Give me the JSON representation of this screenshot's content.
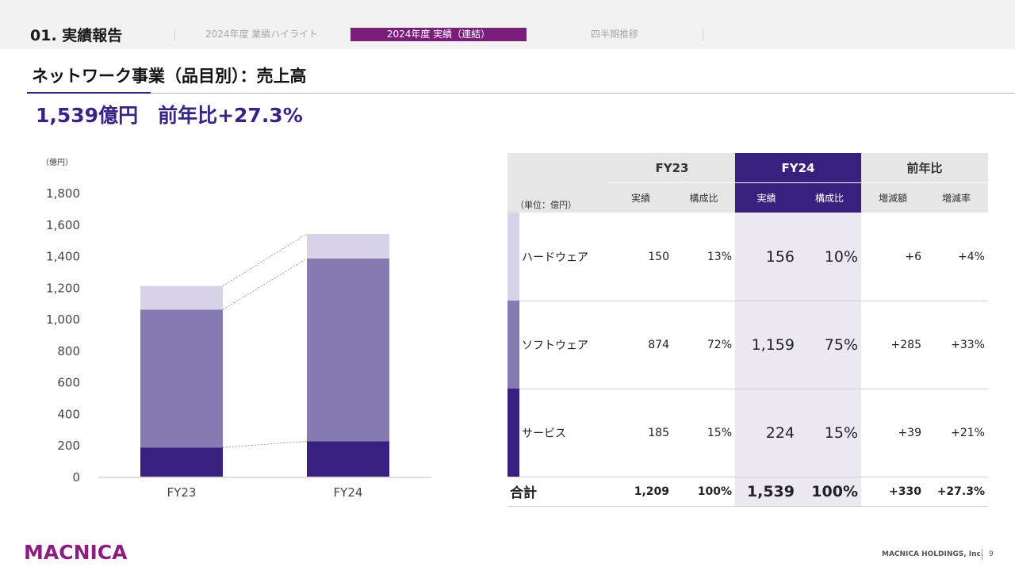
{
  "header": {
    "section_title": "01. 実績報告",
    "tabs": [
      {
        "label": "2024年度 業績ハイライト",
        "active": false
      },
      {
        "label": "2024年度 実績（連結）",
        "active": true
      },
      {
        "label": "四半期推移",
        "active": false
      }
    ]
  },
  "page": {
    "heading": "ネットワーク事業（品目別）：売上高",
    "headline": "1,539億円　前年比+27.3%"
  },
  "chart_data": {
    "type": "bar",
    "stacked": true,
    "categories": [
      "FY23",
      "FY24"
    ],
    "series": [
      {
        "name": "サービス",
        "values": [
          185,
          224
        ],
        "color": "#37207f"
      },
      {
        "name": "ソフトウェア",
        "values": [
          874,
          1159
        ],
        "color": "#8779b2"
      },
      {
        "name": "ハードウェア",
        "values": [
          150,
          156
        ],
        "color": "#d7d2e6"
      }
    ],
    "ylabel": "（億円）",
    "ylim": [
      0,
      1800
    ],
    "yticks": [
      0,
      200,
      400,
      600,
      800,
      1000,
      1200,
      1400,
      1600,
      1800
    ],
    "ytick_labels": [
      "0",
      "200",
      "400",
      "600",
      "800",
      "1,000",
      "1,200",
      "1,400",
      "1,600",
      "1,800"
    ],
    "grid": false,
    "legend": "none"
  },
  "table": {
    "unit_label": "（単位：億円）",
    "groups": [
      "FY23",
      "FY24",
      "前年比"
    ],
    "subheaders": [
      "実績",
      "構成比",
      "実績",
      "構成比",
      "増減額",
      "増減率"
    ],
    "rows": [
      {
        "label": "ハードウェア",
        "color": "#d7d2e6",
        "cells": [
          "150",
          "13%",
          "156",
          "10%",
          "+6",
          "+4%"
        ]
      },
      {
        "label": "ソフトウェア",
        "color": "#8779b2",
        "cells": [
          "874",
          "72%",
          "1,159",
          "75%",
          "+285",
          "+33%"
        ]
      },
      {
        "label": "サービス",
        "color": "#37207f",
        "cells": [
          "185",
          "15%",
          "224",
          "15%",
          "+39",
          "+21%"
        ]
      }
    ],
    "total": {
      "label": "合計",
      "cells": [
        "1,209",
        "100%",
        "1,539",
        "100%",
        "+330",
        "+27.3%"
      ]
    }
  },
  "footer": {
    "logo": "MACNICA",
    "company": "MACNICA HOLDINGS, Inc.",
    "page_number": "9"
  },
  "colors": {
    "accent_purple": "#3b2385",
    "brand_magenta": "#8d1d80",
    "active_tab": "#7b1e7b"
  }
}
